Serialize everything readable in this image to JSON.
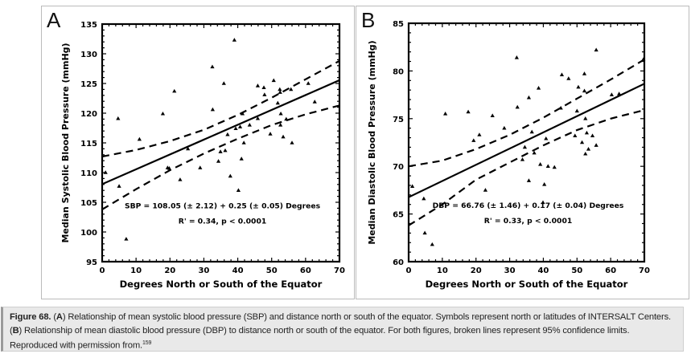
{
  "chart_data": [
    {
      "panel_label": "A",
      "type": "scatter",
      "xlabel": "Degrees North or South of the Equator",
      "ylabel": "Median Systolic Blood Pressure (mmHg)",
      "xlim": [
        0,
        70
      ],
      "ylim": [
        95,
        135
      ],
      "xticks": [
        0,
        10,
        20,
        30,
        40,
        50,
        60,
        70
      ],
      "yticks": [
        95,
        100,
        105,
        110,
        115,
        120,
        125,
        130,
        135
      ],
      "equation": "SBP = 108.05 (± 2.12) + 0.25 (± 0.05) Degrees",
      "stats": "R² = 0.34, p < 0.0001",
      "stats_display": "R' = 0.34, p < 0.0001",
      "regression": {
        "intercept": 108.05,
        "slope": 0.25
      },
      "ci95": {
        "x": [
          0,
          10,
          20,
          30,
          40,
          50,
          60,
          70
        ],
        "upper": [
          112.7,
          113.8,
          115.3,
          117.2,
          119.7,
          122.6,
          125.7,
          128.8
        ],
        "lower": [
          103.8,
          107.2,
          110.4,
          113.2,
          115.7,
          118.0,
          119.8,
          121.3
        ]
      },
      "points": [
        [
          1,
          110
        ],
        [
          4.7,
          119.1
        ],
        [
          5,
          107.7
        ],
        [
          7.1,
          98.8
        ],
        [
          11,
          115.6
        ],
        [
          17.9,
          119.9
        ],
        [
          19.3,
          110.8
        ],
        [
          19.8,
          110.7
        ],
        [
          21.3,
          123.7
        ],
        [
          23,
          108.8
        ],
        [
          25.3,
          114
        ],
        [
          28.9,
          110.8
        ],
        [
          32.5,
          127.8
        ],
        [
          32.6,
          120.6
        ],
        [
          34.3,
          111.9
        ],
        [
          34.9,
          113.5
        ],
        [
          35.9,
          125
        ],
        [
          36.3,
          113.7
        ],
        [
          37,
          116.4
        ],
        [
          37.8,
          109.4
        ],
        [
          39,
          132.3
        ],
        [
          39.4,
          117.4
        ],
        [
          40.2,
          107
        ],
        [
          40.7,
          117.7
        ],
        [
          41.1,
          112.3
        ],
        [
          41.4,
          119.9
        ],
        [
          41.8,
          115
        ],
        [
          43.5,
          118
        ],
        [
          45.9,
          124.6
        ],
        [
          45.9,
          119.1
        ],
        [
          47.7,
          124.3
        ],
        [
          47.9,
          123.1
        ],
        [
          49.6,
          116.5
        ],
        [
          50.6,
          125.5
        ],
        [
          51.8,
          121.7
        ],
        [
          52.4,
          124
        ],
        [
          52.5,
          123.5
        ],
        [
          52.6,
          118
        ],
        [
          52.7,
          119.9
        ],
        [
          53.4,
          116
        ],
        [
          54.3,
          119
        ],
        [
          55.7,
          124
        ],
        [
          56,
          115
        ],
        [
          60.8,
          125
        ],
        [
          62.7,
          121.9
        ]
      ]
    },
    {
      "panel_label": "B",
      "type": "scatter",
      "xlabel": "Degrees North or South of the Equator",
      "ylabel": "Median Diastolic Blood Pressure (mmHg)",
      "xlim": [
        0,
        70
      ],
      "ylim": [
        60,
        85
      ],
      "xticks": [
        0,
        10,
        20,
        30,
        40,
        50,
        60,
        70
      ],
      "yticks": [
        60,
        65,
        70,
        75,
        80,
        85
      ],
      "equation": "DBP = 66.76 (± 1.46) + 0.17 (± 0.04) Degrees",
      "stats": "R² = 0.33, p < 0.0001",
      "stats_display": "R' = 0.33, p < 0.0001",
      "regression": {
        "intercept": 66.76,
        "slope": 0.17
      },
      "ci95": {
        "x": [
          0,
          10,
          20,
          30,
          40,
          50,
          60,
          70
        ],
        "upper": [
          70.0,
          70.6,
          71.8,
          73.3,
          75.1,
          77.1,
          79.1,
          81.2
        ],
        "lower": [
          63.8,
          66.0,
          68.6,
          70.4,
          72.2,
          73.8,
          75.0,
          75.9
        ]
      },
      "points": [
        [
          1.1,
          67.9
        ],
        [
          4.5,
          66.6
        ],
        [
          4.8,
          63
        ],
        [
          7,
          61.8
        ],
        [
          10.9,
          75.5
        ],
        [
          17.7,
          75.7
        ],
        [
          19.3,
          72.7
        ],
        [
          21,
          73.3
        ],
        [
          22.8,
          67.5
        ],
        [
          24.9,
          75.3
        ],
        [
          28.4,
          74
        ],
        [
          32.1,
          81.4
        ],
        [
          32.3,
          76.2
        ],
        [
          33.8,
          70.7
        ],
        [
          34.5,
          72
        ],
        [
          35.7,
          77.2
        ],
        [
          35.7,
          68.5
        ],
        [
          36.6,
          73.6
        ],
        [
          37.3,
          71.4
        ],
        [
          38.6,
          78.2
        ],
        [
          39.1,
          70.2
        ],
        [
          39.9,
          66.2
        ],
        [
          40.3,
          68.1
        ],
        [
          40.8,
          72.9
        ],
        [
          41.4,
          70
        ],
        [
          43.3,
          69.9
        ],
        [
          45.2,
          76.1
        ],
        [
          45.5,
          79.6
        ],
        [
          47.5,
          79.2
        ],
        [
          49.4,
          73.2
        ],
        [
          50,
          75.8
        ],
        [
          50.4,
          78.3
        ],
        [
          51.5,
          72.5
        ],
        [
          52.2,
          79.7
        ],
        [
          52.2,
          77.9
        ],
        [
          52.5,
          75
        ],
        [
          52.5,
          71.3
        ],
        [
          52.9,
          73.5
        ],
        [
          53.4,
          71.8
        ],
        [
          54.6,
          73.2
        ],
        [
          55.7,
          82.2
        ],
        [
          55.7,
          72.2
        ],
        [
          60.3,
          77.5
        ],
        [
          62.5,
          77.6
        ],
        [
          69.7,
          81.2
        ]
      ]
    }
  ],
  "caption": {
    "figure_label": "Figure 68.",
    "a_label": "A",
    "text1": " Relationship of mean systolic blood pressure (SBP) and distance north or south of the equator. Symbols represent north or latitudes of INTERSALT Centers. (",
    "b_label": "B",
    "text2": ") Relationship of mean diastolic blood pressure (DBP) to distance north or south of the equator. For both figures, broken lines represent 95% confidence limits. Reproduced with permission from.",
    "ref": "159"
  }
}
